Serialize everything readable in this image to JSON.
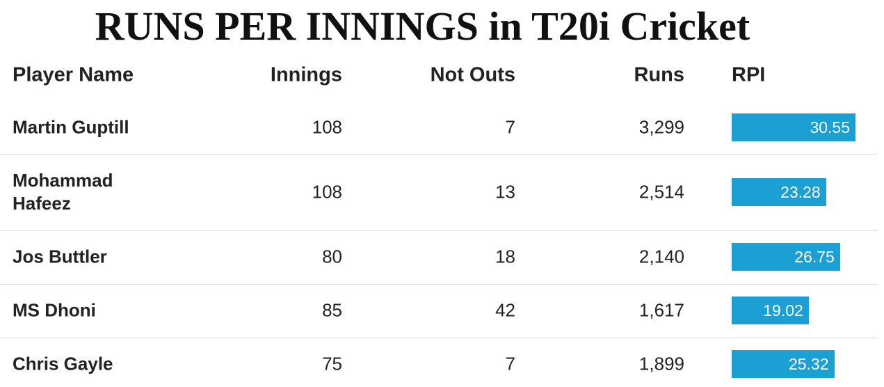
{
  "header": {
    "title": "RUNS PER INNINGS in T20i Cricket"
  },
  "table": {
    "columns": [
      "Player Name",
      "Innings",
      "Not Outs",
      "Runs",
      "RPI"
    ],
    "rows": [
      [
        "Martin Guptill",
        108,
        7,
        "3,299",
        30.55
      ],
      [
        "Mohammad Hafeez",
        108,
        13,
        "2,514",
        23.28
      ],
      [
        "Jos Buttler",
        80,
        18,
        "2,140",
        26.75
      ],
      [
        "MS Dhoni",
        85,
        42,
        "1,617",
        19.02
      ],
      [
        "Chris Gayle",
        75,
        7,
        "1,899",
        25.32
      ]
    ]
  }
}
